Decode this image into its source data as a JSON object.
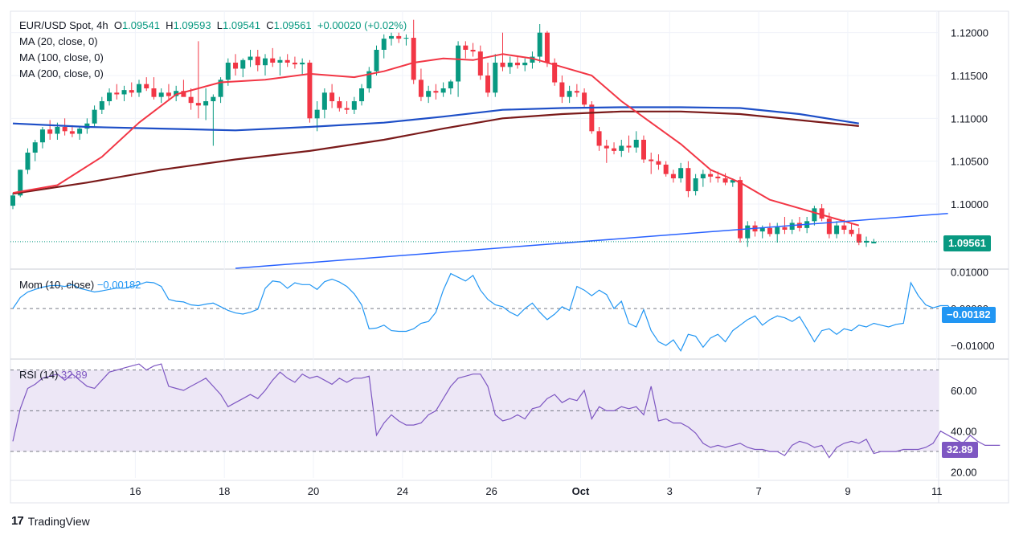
{
  "header": {
    "symbol": "EUR/USD Spot,",
    "interval": "4h",
    "o_label": "O",
    "o": "1.09541",
    "h_label": "H",
    "h": "1.09593",
    "l_label": "L",
    "l": "1.09541",
    "c_label": "C",
    "c": "1.09561",
    "change": "+0.00020 (+0.02%)",
    "ma20": "MA (20, close, 0)",
    "ma100": "MA (100, close, 0)",
    "ma200": "MA (200, close, 0)"
  },
  "mom_legend": {
    "name": "Mom (10, close)",
    "value": "−0.00182"
  },
  "rsi_legend": {
    "name": "RSI (14)",
    "value": "32.89"
  },
  "footer": {
    "brand": "TradingView"
  },
  "colors": {
    "up": "#089981",
    "down": "#f23645",
    "ma20": "#f23645",
    "ma100": "#1e4fc7",
    "ma200": "#7a1a1a",
    "trend": "#2962ff",
    "mom": "#2196f3",
    "rsi": "#7e57c2",
    "rsi_band": "#ede7f6"
  },
  "chart_data": [
    {
      "type": "candlestick",
      "title": "EUR/USD Spot, 4h",
      "price_axis_ticks": [
        "1.12000",
        "1.11500",
        "1.11000",
        "1.10500",
        "1.10000"
      ],
      "price_axis_values": [
        1.12,
        1.115,
        1.11,
        1.105,
        1.1
      ],
      "ylim": [
        1.0925,
        1.1225
      ],
      "last_price": 1.09561,
      "last_price_label": "1.09561",
      "x_ticks": [
        "16",
        "18",
        "20",
        "24",
        "26",
        "Oct",
        "3",
        "7",
        "9",
        "11"
      ],
      "x_tick_bars": [
        16.5,
        28.5,
        40.5,
        52.5,
        64.5,
        76.5,
        88.5,
        100.5,
        112.5,
        124.5
      ],
      "ma20_anchors": [
        [
          0,
          1.1013
        ],
        [
          6,
          1.1022
        ],
        [
          12,
          1.1055
        ],
        [
          17,
          1.1095
        ],
        [
          22,
          1.1128
        ],
        [
          28,
          1.1142
        ],
        [
          34,
          1.1145
        ],
        [
          40,
          1.1152
        ],
        [
          46,
          1.1148
        ],
        [
          50,
          1.1155
        ],
        [
          54,
          1.1165
        ],
        [
          58,
          1.117
        ],
        [
          62,
          1.1168
        ],
        [
          66,
          1.1175
        ],
        [
          70,
          1.117
        ],
        [
          74,
          1.116
        ],
        [
          78,
          1.115
        ],
        [
          82,
          1.112
        ],
        [
          86,
          1.1095
        ],
        [
          90,
          1.107
        ],
        [
          94,
          1.104
        ],
        [
          98,
          1.1025
        ],
        [
          102,
          1.1005
        ],
        [
          106,
          1.0995
        ],
        [
          110,
          1.0985
        ],
        [
          114,
          1.0975
        ]
      ],
      "ma100_anchors": [
        [
          0,
          1.1094
        ],
        [
          10,
          1.109
        ],
        [
          20,
          1.1088
        ],
        [
          30,
          1.1086
        ],
        [
          40,
          1.109
        ],
        [
          50,
          1.1095
        ],
        [
          58,
          1.1102
        ],
        [
          66,
          1.111
        ],
        [
          74,
          1.1112
        ],
        [
          82,
          1.1113
        ],
        [
          90,
          1.1113
        ],
        [
          98,
          1.1112
        ],
        [
          106,
          1.1105
        ],
        [
          114,
          1.1094
        ]
      ],
      "ma200_anchors": [
        [
          0,
          1.1012
        ],
        [
          10,
          1.1025
        ],
        [
          20,
          1.104
        ],
        [
          30,
          1.1052
        ],
        [
          40,
          1.1062
        ],
        [
          50,
          1.1075
        ],
        [
          58,
          1.1088
        ],
        [
          66,
          1.11
        ],
        [
          74,
          1.1105
        ],
        [
          82,
          1.1108
        ],
        [
          90,
          1.1108
        ],
        [
          98,
          1.1105
        ],
        [
          106,
          1.1098
        ],
        [
          114,
          1.1091
        ]
      ],
      "trendline": [
        [
          30,
          1.0925
        ],
        [
          126,
          1.0989
        ]
      ],
      "candles": [
        [
          1.0998,
          1.1013,
          1.0994,
          1.101
        ],
        [
          1.101,
          1.104,
          1.1008,
          1.104
        ],
        [
          1.104,
          1.1065,
          1.1035,
          1.106
        ],
        [
          1.106,
          1.1075,
          1.105,
          1.1072
        ],
        [
          1.1072,
          1.109,
          1.1065,
          1.1087
        ],
        [
          1.1087,
          1.1098,
          1.1075,
          1.1082
        ],
        [
          1.1082,
          1.1095,
          1.1075,
          1.109
        ],
        [
          1.109,
          1.11,
          1.108,
          1.1085
        ],
        [
          1.1085,
          1.1092,
          1.1078,
          1.1082
        ],
        [
          1.1082,
          1.109,
          1.1075,
          1.1088
        ],
        [
          1.1088,
          1.11,
          1.1082,
          1.1094
        ],
        [
          1.1094,
          1.1115,
          1.109,
          1.111
        ],
        [
          1.111,
          1.1125,
          1.1105,
          1.112
        ],
        [
          1.112,
          1.1135,
          1.1115,
          1.113
        ],
        [
          1.113,
          1.114,
          1.1122,
          1.1128
        ],
        [
          1.1128,
          1.1138,
          1.112,
          1.1133
        ],
        [
          1.1133,
          1.1142,
          1.1125,
          1.113
        ],
        [
          1.113,
          1.1145,
          1.1125,
          1.114
        ],
        [
          1.114,
          1.1148,
          1.1132,
          1.1135
        ],
        [
          1.1135,
          1.1148,
          1.1122,
          1.1125
        ],
        [
          1.1125,
          1.1135,
          1.1118,
          1.113
        ],
        [
          1.113,
          1.114,
          1.1122,
          1.1126
        ],
        [
          1.1126,
          1.1138,
          1.112,
          1.1132
        ],
        [
          1.1132,
          1.1145,
          1.1127,
          1.1125
        ],
        [
          1.1125,
          1.1135,
          1.111,
          1.1118
        ],
        [
          1.1118,
          1.119,
          1.11,
          1.1115
        ],
        [
          1.1115,
          1.1135,
          1.1098,
          1.112
        ],
        [
          1.112,
          1.1128,
          1.1068,
          1.1125
        ],
        [
          1.1125,
          1.1148,
          1.1118,
          1.1145
        ],
        [
          1.1145,
          1.117,
          1.1138,
          1.1165
        ],
        [
          1.1165,
          1.1175,
          1.115,
          1.1158
        ],
        [
          1.1158,
          1.117,
          1.1148,
          1.1168
        ],
        [
          1.1168,
          1.118,
          1.116,
          1.1172
        ],
        [
          1.1172,
          1.118,
          1.1155,
          1.1162
        ],
        [
          1.1162,
          1.1175,
          1.115,
          1.117
        ],
        [
          1.117,
          1.1182,
          1.116,
          1.1165
        ],
        [
          1.1165,
          1.1172,
          1.115,
          1.1168
        ],
        [
          1.1168,
          1.1175,
          1.116,
          1.1165
        ],
        [
          1.1165,
          1.1172,
          1.1158,
          1.1163
        ],
        [
          1.1163,
          1.117,
          1.115,
          1.1165
        ],
        [
          1.1165,
          1.1168,
          1.1095,
          1.11
        ],
        [
          1.11,
          1.112,
          1.1085,
          1.111
        ],
        [
          1.111,
          1.1135,
          1.11,
          1.113
        ],
        [
          1.113,
          1.114,
          1.1112,
          1.112
        ],
        [
          1.112,
          1.1125,
          1.1108,
          1.1112
        ],
        [
          1.1112,
          1.112,
          1.1105,
          1.111
        ],
        [
          1.111,
          1.1125,
          1.1105,
          1.112
        ],
        [
          1.112,
          1.114,
          1.1115,
          1.1135
        ],
        [
          1.1135,
          1.116,
          1.113,
          1.1155
        ],
        [
          1.1155,
          1.1185,
          1.115,
          1.118
        ],
        [
          1.118,
          1.1198,
          1.117,
          1.1193
        ],
        [
          1.1193,
          1.12,
          1.1185,
          1.1196
        ],
        [
          1.1196,
          1.12,
          1.1188,
          1.1193
        ],
        [
          1.1193,
          1.1198,
          1.1185,
          1.1194
        ],
        [
          1.1194,
          1.1215,
          1.114,
          1.1145
        ],
        [
          1.1145,
          1.1158,
          1.112,
          1.1125
        ],
        [
          1.1125,
          1.1138,
          1.1118,
          1.1132
        ],
        [
          1.1132,
          1.114,
          1.1122,
          1.113
        ],
        [
          1.113,
          1.1142,
          1.1125,
          1.1135
        ],
        [
          1.1135,
          1.1145,
          1.1128,
          1.1143
        ],
        [
          1.1143,
          1.119,
          1.1125,
          1.1185
        ],
        [
          1.1185,
          1.119,
          1.117,
          1.118
        ],
        [
          1.118,
          1.1188,
          1.1172,
          1.1178
        ],
        [
          1.1178,
          1.1185,
          1.1145,
          1.115
        ],
        [
          1.115,
          1.1165,
          1.1125,
          1.113
        ],
        [
          1.113,
          1.1175,
          1.1125,
          1.1165
        ],
        [
          1.1165,
          1.12,
          1.1155,
          1.116
        ],
        [
          1.116,
          1.1172,
          1.1152,
          1.1165
        ],
        [
          1.1165,
          1.1172,
          1.1158,
          1.1162
        ],
        [
          1.1162,
          1.117,
          1.1155,
          1.1165
        ],
        [
          1.1165,
          1.1178,
          1.1158,
          1.1172
        ],
        [
          1.1172,
          1.121,
          1.1165,
          1.12
        ],
        [
          1.12,
          1.1202,
          1.116,
          1.1165
        ],
        [
          1.1165,
          1.117,
          1.1138,
          1.1142
        ],
        [
          1.1142,
          1.115,
          1.1118,
          1.1125
        ],
        [
          1.1125,
          1.1138,
          1.1118,
          1.1132
        ],
        [
          1.1132,
          1.114,
          1.1125,
          1.113
        ],
        [
          1.113,
          1.1135,
          1.1112,
          1.1116
        ],
        [
          1.1116,
          1.112,
          1.1082,
          1.1085
        ],
        [
          1.1085,
          1.109,
          1.1062,
          1.1068
        ],
        [
          1.1068,
          1.1075,
          1.1048,
          1.1065
        ],
        [
          1.1065,
          1.1072,
          1.1058,
          1.1062
        ],
        [
          1.1062,
          1.1075,
          1.1055,
          1.1068
        ],
        [
          1.1068,
          1.108,
          1.106,
          1.1066
        ],
        [
          1.1066,
          1.1085,
          1.106,
          1.1075
        ],
        [
          1.1075,
          1.108,
          1.1048,
          1.1052
        ],
        [
          1.1052,
          1.106,
          1.1035,
          1.105
        ],
        [
          1.105,
          1.1058,
          1.104,
          1.1046
        ],
        [
          1.1046,
          1.105,
          1.1032,
          1.1035
        ],
        [
          1.1035,
          1.104,
          1.1025,
          1.103
        ],
        [
          1.103,
          1.1048,
          1.1025,
          1.1042
        ],
        [
          1.1042,
          1.105,
          1.1008,
          1.1015
        ],
        [
          1.1015,
          1.1035,
          1.101,
          1.103
        ],
        [
          1.103,
          1.104,
          1.102,
          1.1035
        ],
        [
          1.1035,
          1.104,
          1.1025,
          1.1032
        ],
        [
          1.1032,
          1.1038,
          1.1025,
          1.103
        ],
        [
          1.103,
          1.1036,
          1.1022,
          1.1025
        ],
        [
          1.1025,
          1.103,
          1.102,
          1.1028
        ],
        [
          1.1028,
          1.1032,
          1.0955,
          1.096
        ],
        [
          1.096,
          1.098,
          1.095,
          1.0975
        ],
        [
          1.0975,
          1.098,
          1.0962,
          1.0968
        ],
        [
          1.0968,
          1.0975,
          1.096,
          1.0972
        ],
        [
          1.0972,
          1.0978,
          1.0962,
          1.0965
        ],
        [
          1.0965,
          1.0978,
          1.0955,
          1.0973
        ],
        [
          1.0973,
          1.0985,
          1.0965,
          1.097
        ],
        [
          1.097,
          1.0982,
          1.0965,
          1.0978
        ],
        [
          1.0978,
          1.0985,
          1.0968,
          1.0972
        ],
        [
          1.0972,
          1.0985,
          1.0966,
          1.098
        ],
        [
          1.098,
          1.0998,
          1.0975,
          1.0995
        ],
        [
          1.0995,
          1.1,
          1.098,
          1.0983
        ],
        [
          1.0983,
          1.099,
          1.096,
          1.0965
        ],
        [
          1.0965,
          1.098,
          1.096,
          1.0975
        ],
        [
          1.0975,
          1.0982,
          1.0965,
          1.097
        ],
        [
          1.097,
          1.0978,
          1.0962,
          1.0965
        ],
        [
          1.0965,
          1.0972,
          1.0952,
          1.0955
        ],
        [
          1.0955,
          1.0962,
          1.095,
          1.0957
        ],
        [
          1.09541,
          1.09593,
          1.09541,
          1.09561
        ]
      ]
    },
    {
      "type": "line",
      "title": "Mom (10, close)",
      "y_ticks": [
        "0.01000",
        "0.00000",
        "−0.01000"
      ],
      "y_tick_values": [
        0.01,
        0.0,
        -0.01
      ],
      "ylim": [
        -0.0135,
        0.0105
      ],
      "current_value": -0.00182,
      "current_label": "−0.00182",
      "values": [
        0.0,
        0.003,
        0.0045,
        0.0052,
        0.0058,
        0.0062,
        0.0063,
        0.006,
        0.0065,
        0.0055,
        0.005,
        0.0045,
        0.0048,
        0.0052,
        0.0056,
        0.0055,
        0.006,
        0.0065,
        0.0072,
        0.007,
        0.006,
        0.0025,
        0.002,
        0.0018,
        0.001,
        0.0008,
        0.0012,
        0.0015,
        0.0005,
        -0.0005,
        -0.0012,
        -0.0015,
        -0.001,
        -0.0002,
        0.0055,
        0.0075,
        0.0072,
        0.0055,
        0.007,
        0.0065,
        0.0065,
        0.0052,
        0.0073,
        0.008,
        0.0072,
        0.006,
        0.004,
        0.001,
        -0.0055,
        -0.0053,
        -0.0045,
        -0.006,
        -0.0062,
        -0.0062,
        -0.0055,
        -0.004,
        -0.0035,
        -0.001,
        0.005,
        0.0095,
        0.0085,
        0.0075,
        0.009,
        0.005,
        0.0025,
        0.001,
        0.0005,
        -0.001,
        -0.002,
        0.0,
        0.0015,
        -0.001,
        -0.003,
        -0.0015,
        0.0005,
        -0.0005,
        0.006,
        0.005,
        0.0035,
        0.005,
        0.0038,
        0.0,
        0.002,
        -0.004,
        -0.005,
        -0.0003,
        -0.006,
        -0.009,
        -0.01,
        -0.0085,
        -0.0115,
        -0.007,
        -0.0075,
        -0.0105,
        -0.008,
        -0.007,
        -0.009,
        -0.006,
        -0.0045,
        -0.003,
        -0.002,
        -0.0045,
        -0.003,
        -0.002,
        -0.0025,
        -0.0035,
        -0.0022,
        -0.0055,
        -0.009,
        -0.006,
        -0.0055,
        -0.007,
        -0.0055,
        -0.006,
        -0.0045,
        -0.005,
        -0.004,
        -0.0045,
        -0.005,
        -0.0043,
        -0.004,
        0.007,
        0.0035,
        0.001,
        0.0002,
        0.0008,
        0.0008,
        -0.0018,
        -0.0018,
        -0.0018
      ]
    },
    {
      "type": "line",
      "title": "RSI (14)",
      "y_ticks": [
        "60.00",
        "40.00",
        "20.00"
      ],
      "y_tick_values": [
        60,
        40,
        20
      ],
      "ylim": [
        17,
        75
      ],
      "bands": [
        70,
        50,
        30
      ],
      "current_value": 32.89,
      "current_label": "32.89",
      "values": [
        35,
        51,
        61,
        63,
        66,
        67,
        68,
        65,
        68,
        65,
        62,
        61,
        65,
        69,
        70,
        71,
        72,
        73,
        70,
        72,
        73,
        62,
        61,
        60,
        62,
        64,
        66,
        62,
        58,
        52,
        54,
        56,
        58,
        56,
        60,
        65,
        69,
        66,
        64,
        68,
        66,
        67,
        65,
        63,
        66,
        64,
        66,
        66,
        67,
        38,
        44,
        48,
        45,
        43,
        43,
        44,
        48,
        50,
        56,
        62,
        66,
        67,
        68,
        68,
        62,
        48,
        45,
        46,
        48,
        46,
        51,
        52,
        56,
        58,
        54,
        56,
        55,
        60,
        46,
        52,
        50,
        50,
        52,
        51,
        52,
        48,
        62,
        45,
        46,
        44,
        44,
        42,
        39,
        34,
        32,
        33,
        32,
        33,
        34,
        32,
        31,
        31,
        30,
        30,
        28,
        33,
        35,
        34,
        32,
        33,
        27,
        32,
        34,
        35,
        34,
        36,
        29,
        30,
        30,
        30,
        31,
        31,
        31,
        32,
        34,
        40,
        38,
        36,
        34,
        38,
        35,
        33,
        33,
        33
      ]
    }
  ]
}
